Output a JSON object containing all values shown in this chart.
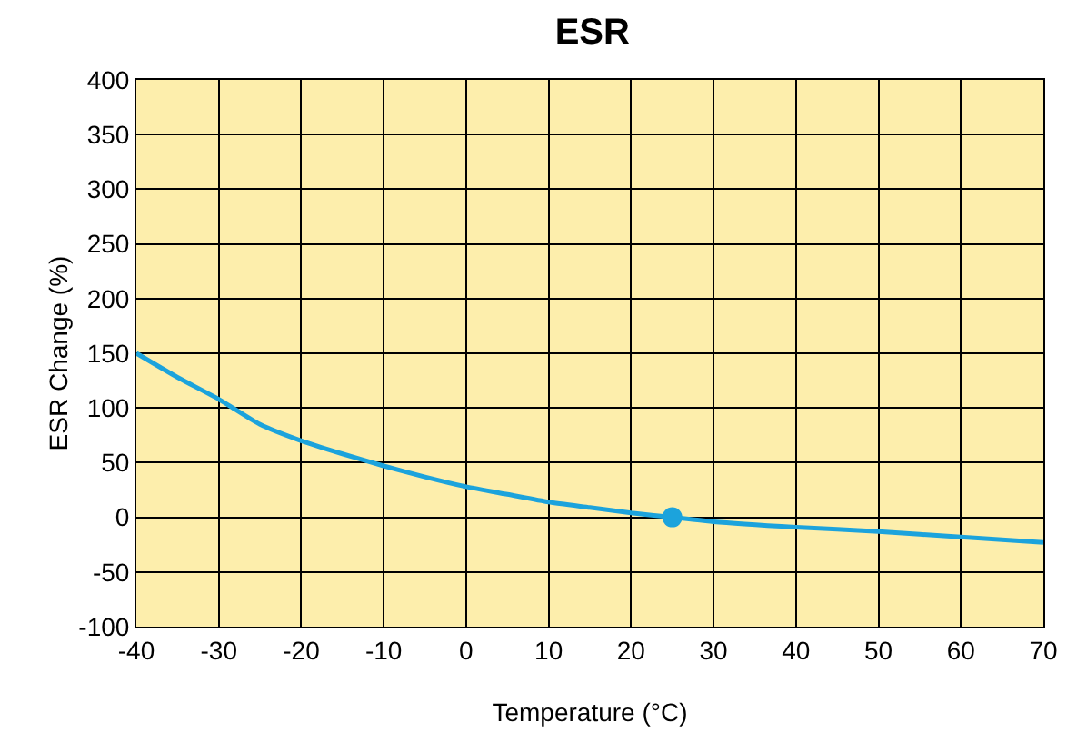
{
  "chart_data": {
    "type": "line",
    "title": "ESR",
    "xlabel": "Temperature (°C)",
    "ylabel": "ESR Change (%)",
    "xlim": [
      -40,
      70
    ],
    "xticks": [
      -40,
      -30,
      -20,
      -10,
      0,
      10,
      20,
      30,
      40,
      50,
      60,
      70
    ],
    "ylim": [
      -100,
      400
    ],
    "yticks": [
      -100,
      -50,
      0,
      50,
      100,
      150,
      200,
      250,
      300,
      350,
      400
    ],
    "grid": true,
    "marker": "none",
    "line_style": "solid",
    "series": [
      {
        "color": "#1ca3dc",
        "x": [
          -40,
          -35,
          -30,
          -25,
          -20,
          -15,
          -10,
          -5,
          0,
          5,
          10,
          15,
          20,
          25,
          30,
          40,
          50,
          60,
          70
        ],
        "values": [
          150,
          128,
          108,
          85,
          70,
          58,
          47,
          37,
          28,
          21,
          14,
          9,
          4,
          0,
          -4,
          -9,
          -13,
          -18,
          -23
        ]
      },
      {
        "type": "scatter",
        "marker": "circle",
        "color": "#1ca3dc",
        "x": [
          25
        ],
        "values": [
          0
        ]
      }
    ]
  }
}
